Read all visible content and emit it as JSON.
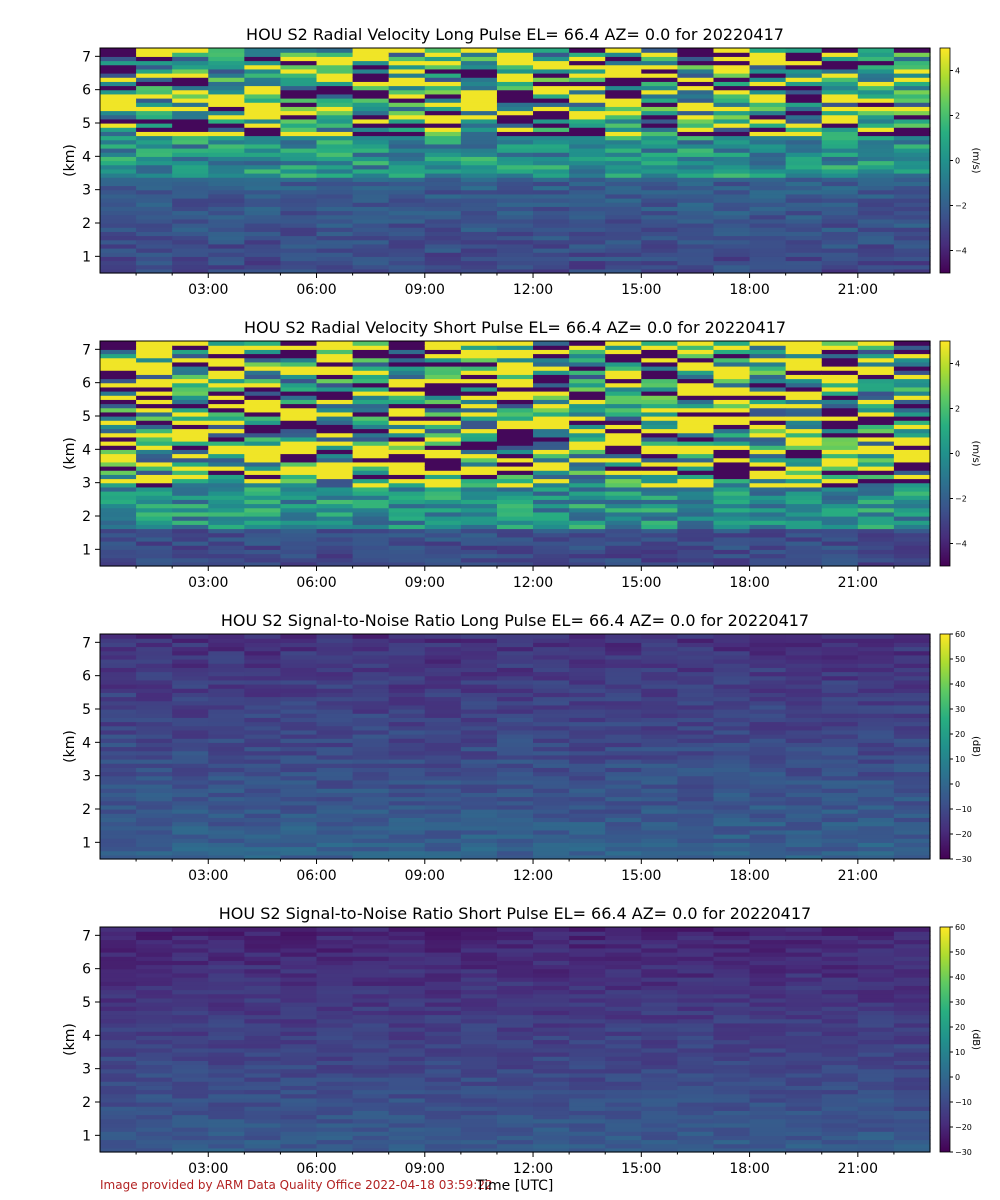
{
  "footer": {
    "credit": "Image provided by ARM Data Quality Office 2022-04-18 03:59:22",
    "xlabel": "Time [UTC]"
  },
  "chart_data": [
    {
      "type": "heatmap",
      "title": "HOU S2 Radial Velocity Long Pulse EL= 66.4 AZ= 0.0 for 20220417",
      "ylabel": "(km)",
      "xlim_hours": [
        0,
        23
      ],
      "ylim_km": [
        0.5,
        7.25
      ],
      "x_ticks": [
        "03:00",
        "06:00",
        "09:00",
        "12:00",
        "15:00",
        "18:00",
        "21:00"
      ],
      "x_tick_hours": [
        3,
        6,
        9,
        12,
        15,
        18,
        21
      ],
      "y_ticks": [
        "1",
        "2",
        "3",
        "4",
        "5",
        "6",
        "7"
      ],
      "colorbar": {
        "label": "(m/s)",
        "min": -5,
        "max": 5,
        "ticks": [
          "4",
          "2",
          "0",
          "−2",
          "−4"
        ],
        "tick_values": [
          4,
          2,
          0,
          -2,
          -4
        ]
      },
      "pattern": "velocity-long",
      "seed": 11
    },
    {
      "type": "heatmap",
      "title": "HOU S2 Radial Velocity Short Pulse EL= 66.4 AZ= 0.0 for 20220417",
      "ylabel": "(km)",
      "xlim_hours": [
        0,
        23
      ],
      "ylim_km": [
        0.5,
        7.25
      ],
      "x_ticks": [
        "03:00",
        "06:00",
        "09:00",
        "12:00",
        "15:00",
        "18:00",
        "21:00"
      ],
      "x_tick_hours": [
        3,
        6,
        9,
        12,
        15,
        18,
        21
      ],
      "y_ticks": [
        "1",
        "2",
        "3",
        "4",
        "5",
        "6",
        "7"
      ],
      "colorbar": {
        "label": "(m/s)",
        "min": -5,
        "max": 5,
        "ticks": [
          "4",
          "2",
          "0",
          "−2",
          "−4"
        ],
        "tick_values": [
          4,
          2,
          0,
          -2,
          -4
        ]
      },
      "pattern": "velocity-short",
      "seed": 23
    },
    {
      "type": "heatmap",
      "title": "HOU S2 Signal-to-Noise Ratio Long Pulse EL= 66.4 AZ= 0.0 for 20220417",
      "ylabel": "(km)",
      "xlim_hours": [
        0,
        23
      ],
      "ylim_km": [
        0.5,
        7.25
      ],
      "x_ticks": [
        "03:00",
        "06:00",
        "09:00",
        "12:00",
        "15:00",
        "18:00",
        "21:00"
      ],
      "x_tick_hours": [
        3,
        6,
        9,
        12,
        15,
        18,
        21
      ],
      "y_ticks": [
        "1",
        "2",
        "3",
        "4",
        "5",
        "6",
        "7"
      ],
      "colorbar": {
        "label": "(dB)",
        "min": -30,
        "max": 60,
        "ticks": [
          "60",
          "50",
          "40",
          "30",
          "20",
          "10",
          "0",
          "−10",
          "−20",
          "−30"
        ],
        "tick_values": [
          60,
          50,
          40,
          30,
          20,
          10,
          0,
          -10,
          -20,
          -30
        ]
      },
      "pattern": "snr-long",
      "seed": 37
    },
    {
      "type": "heatmap",
      "title": "HOU S2 Signal-to-Noise Ratio Short Pulse EL= 66.4 AZ= 0.0 for 20220417",
      "ylabel": "(km)",
      "xlim_hours": [
        0,
        23
      ],
      "ylim_km": [
        0.5,
        7.25
      ],
      "x_ticks": [
        "03:00",
        "06:00",
        "09:00",
        "12:00",
        "15:00",
        "18:00",
        "21:00"
      ],
      "x_tick_hours": [
        3,
        6,
        9,
        12,
        15,
        18,
        21
      ],
      "y_ticks": [
        "1",
        "2",
        "3",
        "4",
        "5",
        "6",
        "7"
      ],
      "colorbar": {
        "label": "(dB)",
        "min": -30,
        "max": 60,
        "ticks": [
          "60",
          "50",
          "40",
          "30",
          "20",
          "10",
          "0",
          "−10",
          "−20",
          "−30"
        ],
        "tick_values": [
          60,
          50,
          40,
          30,
          20,
          10,
          0,
          -10,
          -20,
          -30
        ]
      },
      "pattern": "snr-short",
      "seed": 53
    }
  ]
}
